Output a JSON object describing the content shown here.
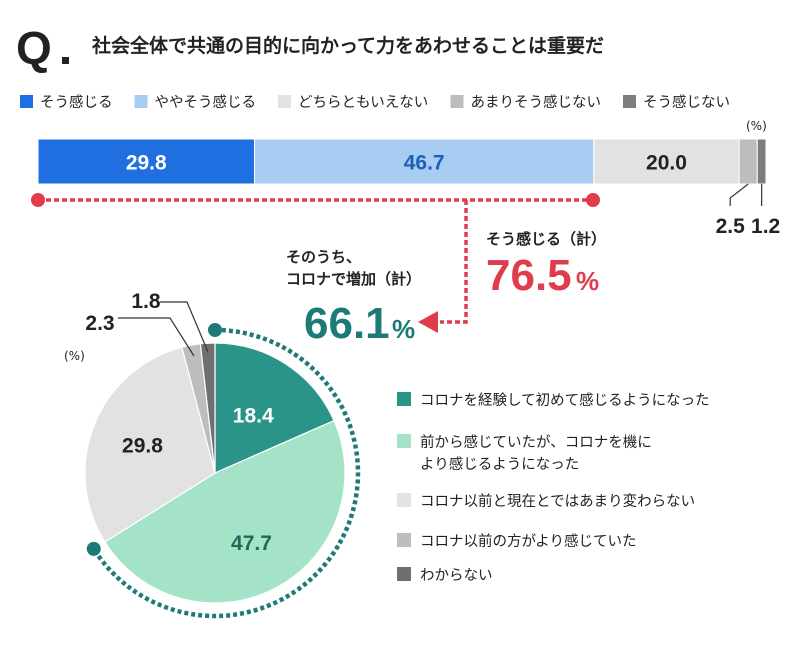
{
  "header": {
    "q_label": "Q",
    "question": "社会全体で共通の目的に向かって力をあわせることは重要だ"
  },
  "colors": {
    "blue": "#1f6fe0",
    "light_blue": "#a8ccf2",
    "light_gray": "#e2e2e2",
    "mid_gray": "#bdbdbd",
    "dark_gray": "#7d7d7d",
    "teal": "#2a9488",
    "mint": "#a5e3c9",
    "pie_dark_gray": "#6f6f6f",
    "red": "#e03c4c",
    "dark_teal": "#1e7a76"
  },
  "chart_data": [
    {
      "type": "bar",
      "orientation": "horizontal-stacked",
      "unit_label": "(%)",
      "legend": [
        "そう感じる",
        "ややそう感じる",
        "どちらともいえない",
        "あまりそう感じない",
        "そう感じない"
      ],
      "values": [
        29.8,
        46.7,
        20.0,
        2.5,
        1.2
      ],
      "value_labels": [
        "29.8",
        "46.7",
        "20.0",
        "2.5",
        "1.2"
      ],
      "total_label": "そう感じる（計）",
      "total_value": "76.5",
      "total_unit": "%"
    },
    {
      "type": "pie",
      "unit_label": "(%)",
      "categories": [
        "コロナを経験して初めて感じるようになった",
        "前から感じていたが、コロナを機により感じるようになった",
        "コロナ以前と現在とではあまり変わらない",
        "コロナ以前の方がより感じていた",
        "わからない"
      ],
      "legend_lines": [
        [
          "コロナを経験して初めて感じるようになった"
        ],
        [
          "前から感じていたが、コロナを機に",
          "より感じるようになった"
        ],
        [
          "コロナ以前と現在とではあまり変わらない"
        ],
        [
          "コロナ以前の方がより感じていた"
        ],
        [
          "わからない"
        ]
      ],
      "values": [
        18.4,
        47.7,
        29.8,
        2.3,
        1.8
      ],
      "value_labels": [
        "18.4",
        "47.7",
        "29.8",
        "2.3",
        "1.8"
      ],
      "subtotal_caption": [
        "そのうち、",
        "コロナで増加（計）"
      ],
      "subtotal_value": "66.1",
      "subtotal_unit": "%"
    }
  ]
}
